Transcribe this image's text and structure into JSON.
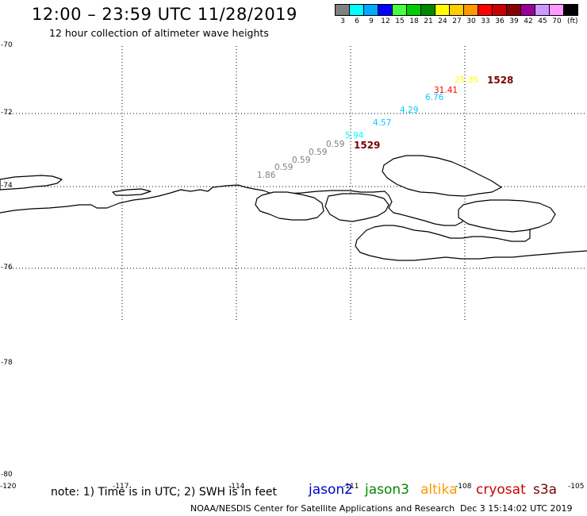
{
  "header": {
    "title": "12:00 – 23:59 UTC 11/28/2019",
    "subtitle": "12 hour collection of altimeter wave heights"
  },
  "color_scale": {
    "unit": "(ft)",
    "bins": [
      {
        "label": "3",
        "color": "#808080"
      },
      {
        "label": "6",
        "color": "#00ffff"
      },
      {
        "label": "9",
        "color": "#00aaff"
      },
      {
        "label": "12",
        "color": "#0000ff"
      },
      {
        "label": "15",
        "color": "#44ff44"
      },
      {
        "label": "18",
        "color": "#00cc00"
      },
      {
        "label": "21",
        "color": "#008800"
      },
      {
        "label": "24",
        "color": "#ffff00"
      },
      {
        "label": "27",
        "color": "#ffcc00"
      },
      {
        "label": "30",
        "color": "#ff9900"
      },
      {
        "label": "33",
        "color": "#ff0000"
      },
      {
        "label": "36",
        "color": "#cc0000"
      },
      {
        "label": "39",
        "color": "#880000"
      },
      {
        "label": "42",
        "color": "#990099"
      },
      {
        "label": "45",
        "color": "#cc99ff"
      },
      {
        "label": "70",
        "color": "#ff99ff"
      },
      {
        "label": "",
        "color": "#000000"
      }
    ]
  },
  "axes": {
    "lat_labels": [
      "-70",
      "-72",
      "-74",
      "-76",
      "-78",
      "-80"
    ],
    "lon_labels": [
      "-120",
      "-117",
      "-114",
      "-111",
      "-108",
      "-105"
    ]
  },
  "observations": [
    {
      "value": "1.86",
      "color": "#808080"
    },
    {
      "value": "0.59",
      "color": "#808080"
    },
    {
      "value": "0.59",
      "color": "#808080"
    },
    {
      "value": "0.59",
      "color": "#808080"
    },
    {
      "value": "0.59",
      "color": "#808080"
    },
    {
      "value": "5.94",
      "color": "#00ffff"
    },
    {
      "value": "4.57",
      "color": "#00ccff"
    },
    {
      "value": "4.29",
      "color": "#00ccff"
    },
    {
      "value": "6.76",
      "color": "#00ccff"
    },
    {
      "value": "31.41",
      "color": "#ff0000"
    },
    {
      "value": "25.35",
      "color": "#ffff00"
    }
  ],
  "passes": [
    {
      "label": "1529",
      "color": "#7a0000"
    },
    {
      "label": "1528",
      "color": "#7a0000"
    }
  ],
  "footer": {
    "note": "note: 1) Time is in UTC; 2) SWH is in feet",
    "satellites": [
      {
        "name": "jason2",
        "color": "#0000cc"
      },
      {
        "name": "jason3",
        "color": "#008800"
      },
      {
        "name": "altika",
        "color": "#ff9900"
      },
      {
        "name": "cryosat",
        "color": "#cc0000"
      },
      {
        "name": "s3a",
        "color": "#7a0000"
      }
    ],
    "credit": "NOAA/NESDIS Center for Satellite Applications and Research",
    "generated": "Dec  3 15:14:02 UTC 2019"
  }
}
